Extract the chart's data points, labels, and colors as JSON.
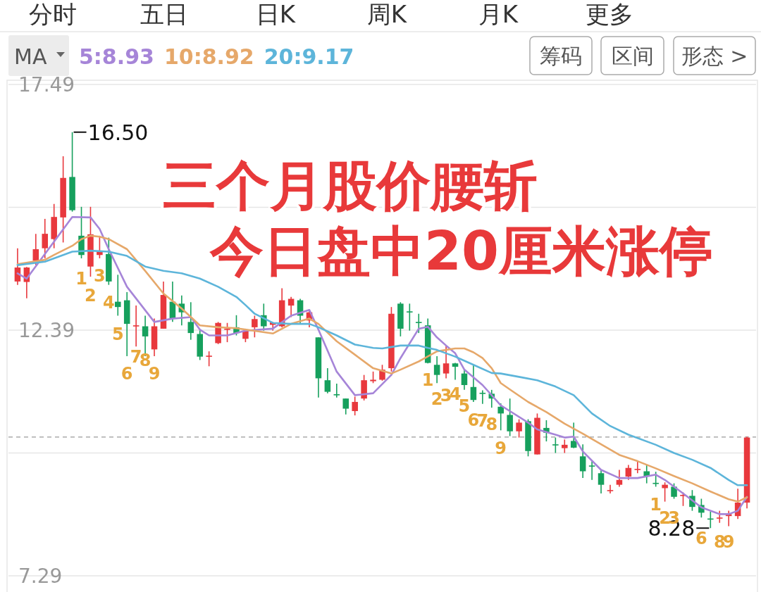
{
  "chart_data": {
    "type": "candlestick",
    "title": "三个月股价腰斩",
    "subtitle": "今日盘中20厘米涨停",
    "legend_title": "MA",
    "legend": "top left",
    "categories": [
      null,
      null,
      null,
      null,
      null,
      null,
      null,
      null,
      null,
      null,
      null,
      null,
      null,
      null,
      null,
      null,
      null,
      null,
      null,
      null,
      null,
      null,
      null,
      null,
      null,
      null,
      null,
      null,
      null,
      null,
      null,
      null,
      null,
      null,
      null,
      null,
      null,
      null,
      null,
      null,
      null,
      null,
      null,
      null,
      null,
      null,
      null,
      null,
      null,
      null,
      null,
      null,
      null,
      null,
      null,
      null,
      null,
      null,
      null,
      null,
      null,
      null,
      null,
      null,
      null,
      null,
      null,
      null,
      null,
      null,
      null,
      null,
      null,
      null,
      null,
      null,
      null,
      null,
      null,
      null,
      null
    ],
    "ohlc": [
      [
        13.4,
        14.09,
        13.33,
        13.69
      ],
      [
        13.39,
        13.7,
        13.05,
        13.69
      ],
      [
        13.83,
        14.39,
        13.74,
        14.07
      ],
      [
        14.09,
        14.7,
        13.88,
        14.39
      ],
      [
        14.28,
        15.01,
        14.09,
        14.74
      ],
      [
        14.73,
        16.0,
        14.21,
        15.55
      ],
      [
        15.57,
        16.5,
        14.85,
        14.88
      ],
      [
        14.35,
        14.95,
        13.88,
        13.95
      ],
      [
        13.71,
        14.95,
        13.5,
        14.38
      ],
      [
        13.95,
        14.35,
        13.88,
        14.02
      ],
      [
        13.97,
        14.31,
        13.33,
        13.4
      ],
      [
        12.98,
        13.54,
        12.69,
        12.87
      ],
      [
        13.01,
        13.18,
        11.85,
        12.52
      ],
      [
        12.47,
        12.9,
        12.05,
        12.49
      ],
      [
        12.47,
        12.69,
        11.85,
        12.26
      ],
      [
        11.99,
        12.63,
        11.85,
        12.47
      ],
      [
        12.42,
        13.4,
        12.42,
        13.12
      ],
      [
        12.98,
        13.4,
        12.56,
        12.63
      ],
      [
        12.94,
        13.11,
        12.49,
        12.76
      ],
      [
        12.56,
        12.97,
        12.19,
        12.33
      ],
      [
        12.31,
        12.4,
        11.77,
        11.84
      ],
      [
        11.84,
        11.95,
        11.64,
        11.86
      ],
      [
        12.12,
        12.56,
        12.1,
        12.54
      ],
      [
        12.4,
        12.54,
        12.14,
        12.42
      ],
      [
        12.45,
        12.7,
        12.28,
        12.33
      ],
      [
        12.21,
        12.42,
        12.14,
        12.38
      ],
      [
        12.45,
        12.69,
        12.24,
        12.62
      ],
      [
        12.7,
        12.94,
        12.38,
        12.47
      ],
      [
        12.5,
        12.56,
        12.38,
        12.55
      ],
      [
        12.47,
        13.26,
        12.45,
        13.01
      ],
      [
        12.9,
        13.08,
        12.66,
        13.04
      ],
      [
        13.01,
        13.04,
        12.52,
        12.69
      ],
      [
        12.59,
        12.8,
        12.45,
        12.76
      ],
      [
        12.24,
        12.24,
        10.99,
        11.39
      ],
      [
        11.35,
        11.6,
        11.08,
        11.11
      ],
      [
        11.06,
        11.28,
        10.99,
        11.04
      ],
      [
        10.97,
        10.97,
        10.64,
        10.76
      ],
      [
        10.71,
        11.01,
        10.62,
        10.9
      ],
      [
        10.97,
        11.46,
        10.93,
        11.35
      ],
      [
        11.33,
        11.53,
        11.29,
        11.36
      ],
      [
        11.36,
        11.67,
        11.34,
        11.57
      ],
      [
        11.6,
        12.87,
        11.53,
        12.73
      ],
      [
        12.94,
        12.97,
        12.26,
        12.42
      ],
      [
        12.78,
        12.94,
        12.38,
        12.76
      ],
      [
        12.56,
        12.73,
        12.33,
        12.54
      ],
      [
        12.49,
        12.63,
        11.7,
        11.71
      ],
      [
        11.67,
        11.85,
        11.29,
        11.46
      ],
      [
        11.49,
        12.07,
        11.39,
        11.7
      ],
      [
        11.7,
        11.71,
        11.36,
        11.63
      ],
      [
        11.49,
        11.57,
        11.15,
        11.25
      ],
      [
        11.21,
        11.67,
        10.9,
        10.94
      ],
      [
        11.09,
        11.14,
        10.86,
        11.07
      ],
      [
        11.07,
        11.15,
        10.78,
        10.97
      ],
      [
        10.8,
        10.87,
        10.31,
        10.66
      ],
      [
        10.63,
        10.97,
        10.19,
        10.29
      ],
      [
        10.29,
        10.54,
        10.16,
        10.47
      ],
      [
        10.5,
        10.54,
        9.77,
        9.88
      ],
      [
        9.81,
        10.66,
        9.81,
        10.57
      ],
      [
        10.36,
        10.52,
        10.08,
        10.26
      ],
      [
        10.02,
        10.16,
        9.84,
        10.01
      ],
      [
        9.94,
        10.12,
        9.84,
        10.01
      ],
      [
        10.09,
        10.47,
        9.94,
        9.95
      ],
      [
        9.77,
        10.02,
        9.32,
        9.46
      ],
      [
        9.58,
        9.67,
        9.28,
        9.56
      ],
      [
        9.42,
        9.49,
        9.0,
        9.18
      ],
      [
        9.06,
        9.18,
        9.0,
        9.07
      ],
      [
        9.18,
        9.49,
        9.14,
        9.28
      ],
      [
        9.35,
        9.59,
        9.28,
        9.53
      ],
      [
        9.49,
        9.67,
        9.42,
        9.51
      ],
      [
        9.46,
        9.6,
        9.21,
        9.35
      ],
      [
        9.22,
        9.45,
        9.14,
        9.21
      ],
      [
        9.11,
        9.23,
        8.83,
        9.18
      ],
      [
        9.14,
        9.21,
        8.89,
        8.93
      ],
      [
        8.96,
        9.02,
        8.74,
        8.97
      ],
      [
        8.95,
        9.07,
        8.64,
        8.72
      ],
      [
        8.76,
        8.89,
        8.5,
        8.6
      ],
      [
        8.48,
        8.62,
        8.28,
        8.46
      ],
      [
        8.48,
        8.64,
        8.39,
        8.5
      ],
      [
        8.53,
        8.64,
        8.32,
        8.57
      ],
      [
        8.53,
        9.1,
        8.47,
        8.81
      ],
      [
        8.81,
        10.18,
        8.69,
        10.16
      ]
    ],
    "colors": [
      "#e8383d",
      "#e8383d",
      "#e8383d",
      "#e8383d",
      "#e8383d",
      "#e8383d",
      "#16a05d",
      "#16a05d",
      "#e8383d",
      "#e8383d",
      "#16a05d",
      "#16a05d",
      "#16a05d",
      "#e8383d",
      "#16a05d",
      "#e8383d",
      "#e8383d",
      "#16a05d",
      "#16a05d",
      "#16a05d",
      "#16a05d",
      "#e8383d",
      "#e8383d",
      "#e8383d",
      "#16a05d",
      "#e8383d",
      "#e8383d",
      "#16a05d",
      "#e8383d",
      "#e8383d",
      "#e8383d",
      "#16a05d",
      "#e8383d",
      "#16a05d",
      "#16a05d",
      "#16a05d",
      "#16a05d",
      "#e8383d",
      "#e8383d",
      "#e8383d",
      "#e8383d",
      "#e8383d",
      "#16a05d",
      "#16a05d",
      "#16a05d",
      "#16a05d",
      "#16a05d",
      "#e8383d",
      "#16a05d",
      "#16a05d",
      "#16a05d",
      "#16a05d",
      "#16a05d",
      "#16a05d",
      "#16a05d",
      "#e8383d",
      "#16a05d",
      "#e8383d",
      "#16a05d",
      "#16a05d",
      "#e8383d",
      "#16a05d",
      "#16a05d",
      "#16a05d",
      "#16a05d",
      "#e8383d",
      "#e8383d",
      "#e8383d",
      "#e8383d",
      "#16a05d",
      "#16a05d",
      "#e8383d",
      "#16a05d",
      "#e8383d",
      "#16a05d",
      "#16a05d",
      "#16a05d",
      "#e8383d",
      "#e8383d",
      "#e8383d",
      "#e8383d"
    ],
    "series": [
      {
        "name": "5:8.93",
        "type": "line",
        "color": "#a685d8",
        "values": [
          13.57,
          13.46,
          null,
          null,
          null,
          null,
          14.74,
          null,
          14.73,
          14.49,
          14.07,
          null,
          13.29,
          null,
          null,
          12.56,
          null,
          12.63,
          null,
          12.66,
          12.4,
          12.28,
          null,
          12.28,
          null,
          12.38,
          null,
          null,
          12.42,
          null,
          12.69,
          null,
          12.81,
          12.4,
          null,
          11.53,
          null,
          11.04,
          null,
          11.08,
          null,
          11.46,
          11.81,
          null,
          12.42,
          12.46,
          12.24,
          12.07,
          11.91,
          11.57,
          null,
          11.25,
          null,
          10.83,
          10.71,
          null,
          10.47,
          10.33,
          null,
          10.22,
          10.16,
          10.18,
          9.87,
          null,
          9.49,
          null,
          9.32,
          null,
          9.32,
          null,
          9.39,
          9.28,
          null,
          9.0,
          null,
          8.71,
          null,
          8.57,
          8.57,
          8.64,
          8.93
        ]
      },
      {
        "name": "10:8.92",
        "type": "line",
        "color": "#e6a86a",
        "values": [
          13.76,
          null,
          null,
          13.85,
          13.95,
          null,
          14.14,
          14.28,
          14.35,
          14.33,
          14.28,
          null,
          14.07,
          null,
          13.62,
          null,
          13.15,
          null,
          12.84,
          null,
          12.49,
          null,
          12.45,
          null,
          12.43,
          null,
          null,
          null,
          12.32,
          null,
          12.52,
          null,
          12.63,
          12.52,
          null,
          12.16,
          null,
          11.88,
          null,
          11.6,
          null,
          11.49,
          11.57,
          null,
          11.74,
          null,
          11.95,
          null,
          12.01,
          12.01,
          11.93,
          11.81,
          11.6,
          11.29,
          11.16,
          null,
          10.9,
          null,
          10.69,
          null,
          10.45,
          null,
          10.24,
          null,
          10.02,
          null,
          9.8,
          null,
          9.67,
          null,
          9.52,
          null,
          9.36,
          null,
          9.21,
          null,
          9.04,
          null,
          8.88,
          8.83,
          8.92
        ]
      },
      {
        "name": "20:9.17",
        "type": "line",
        "color": "#5db5da",
        "values": [
          13.74,
          null,
          null,
          13.81,
          null,
          null,
          14.02,
          null,
          14.04,
          null,
          14.02,
          null,
          13.93,
          null,
          13.71,
          null,
          13.62,
          null,
          13.57,
          null,
          13.46,
          null,
          13.29,
          null,
          13.08,
          12.91,
          12.73,
          null,
          12.54,
          null,
          12.52,
          null,
          12.52,
          12.45,
          null,
          12.28,
          null,
          12.09,
          null,
          12.02,
          12.01,
          null,
          12.07,
          null,
          12.07,
          12.02,
          11.98,
          null,
          11.84,
          null,
          11.67,
          null,
          11.5,
          11.49,
          null,
          11.42,
          null,
          11.35,
          null,
          11.22,
          null,
          11.04,
          null,
          10.66,
          null,
          10.4,
          null,
          10.22,
          null,
          null,
          10.01,
          null,
          9.84,
          null,
          9.7,
          null,
          9.53,
          null,
          9.28,
          9.17,
          9.17
        ]
      }
    ],
    "ylim": [
      7.29,
      17.49
    ],
    "yticks": [
      17.49,
      {
        "value": 14.94,
        "label": null
      },
      12.39,
      {
        "value": 9.84,
        "label": null
      },
      7.29
    ],
    "tick_labels": "y",
    "grid": "y",
    "ref_lines": [
      {
        "axis": "y",
        "value": 10.17,
        "line_style": "dashed",
        "color": "#999999"
      }
    ],
    "annotations": [
      "分时",
      "五日",
      "日K",
      "周K",
      "月K",
      "更多",
      "筹码",
      "区间",
      "形态 >",
      "16.50",
      "8.28",
      "1",
      "2",
      "3",
      "4",
      "5",
      "6",
      "7",
      "8",
      "9",
      "1",
      "2",
      "3",
      "4",
      "5",
      "6",
      "7",
      "8",
      "9",
      "1",
      "2",
      "3",
      "6",
      "8",
      "9"
    ]
  }
}
